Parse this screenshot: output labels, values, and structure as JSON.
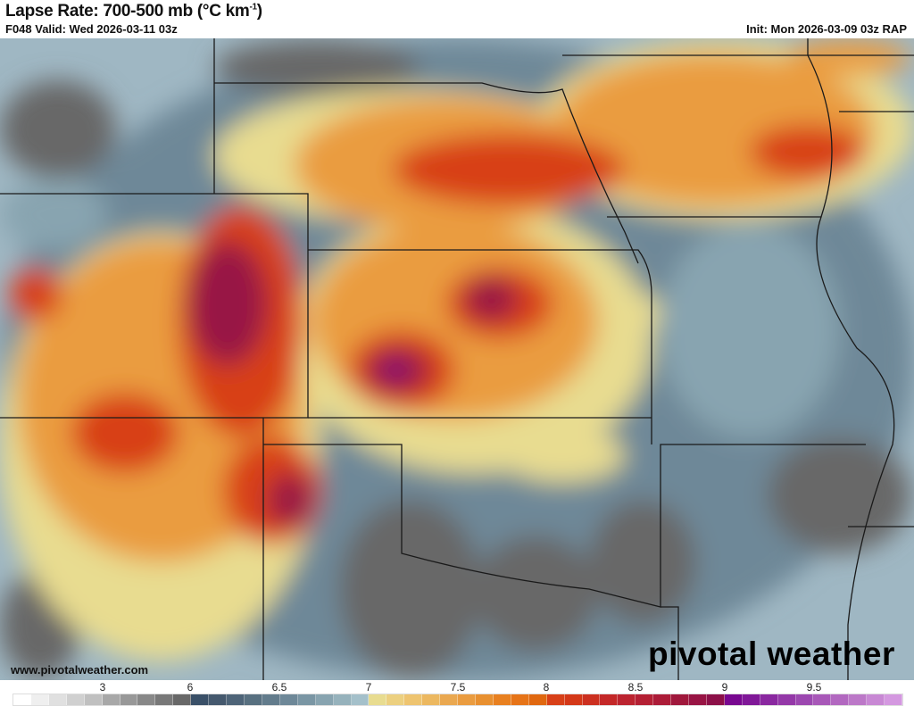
{
  "header": {
    "title": "Lapse Rate: 700-500 mb (°C km",
    "title_sup": "-1",
    "title_close": ")",
    "valid": "F048 Valid: Wed 2026-03-11 03z",
    "init": "Init: Mon 2026-03-09 03z RAP"
  },
  "footer": {
    "website": "www.pivotalweather.com",
    "logo": "pivotal weather"
  },
  "colorbar": {
    "ticks": [
      "3",
      "6",
      "6.5",
      "7",
      "7.5",
      "8",
      "8.5",
      "9",
      "9.5"
    ],
    "tick_values": [
      3,
      6,
      6.5,
      7,
      7.5,
      8,
      8.5,
      9,
      9.5
    ],
    "colors": [
      "#ffffff",
      "#efefef",
      "#e0e0e0",
      "#d0d0d0",
      "#c0c0c0",
      "#a8a8a8",
      "#989898",
      "#888888",
      "#787878",
      "#686868",
      "#3a5068",
      "#45596e",
      "#4e6478",
      "#587080",
      "#637c8c",
      "#6e8898",
      "#7a96a4",
      "#88a4b0",
      "#96b2bc",
      "#a4c0ca",
      "#e8dc90",
      "#ecd080",
      "#eec470",
      "#ecb860",
      "#eaa850",
      "#ea9c40",
      "#e89030",
      "#e88020",
      "#e67418",
      "#e06810",
      "#d84018",
      "#d43818",
      "#cc3020",
      "#c42828",
      "#bc2430",
      "#b42034",
      "#ac1c38",
      "#a0183c",
      "#981444",
      "#8c1048",
      "#780890",
      "#801898",
      "#8a28a0",
      "#9438a8",
      "#9c48b0",
      "#a858b8",
      "#b268c0",
      "#bc78c8",
      "#c888d4",
      "#d498e0"
    ]
  }
}
